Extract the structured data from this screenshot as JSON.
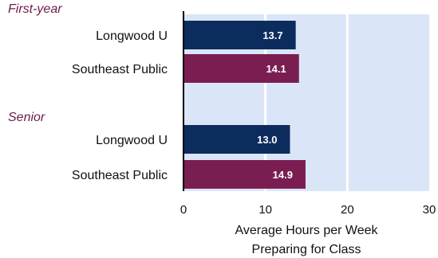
{
  "chart_data": {
    "type": "bar",
    "orientation": "horizontal",
    "groups": [
      {
        "label": "First-year",
        "rows": [
          {
            "category": "Longwood U",
            "value": 13.7,
            "value_label": "13.7",
            "color": "#0d2c5e"
          },
          {
            "category": "Southeast Public",
            "value": 14.1,
            "value_label": "14.1",
            "color": "#7a1e52"
          }
        ]
      },
      {
        "label": "Senior",
        "rows": [
          {
            "category": "Longwood U",
            "value": 13.0,
            "value_label": "13.0",
            "color": "#0d2c5e"
          },
          {
            "category": "Southeast Public",
            "value": 14.9,
            "value_label": "14.9",
            "color": "#7a1e52"
          }
        ]
      }
    ],
    "xlim": [
      0,
      30
    ],
    "xticks": [
      "0",
      "10",
      "20",
      "30"
    ],
    "xlabel_lines": [
      "Average Hours per Week",
      "Preparing for Class"
    ],
    "plot_background": "#dae6f7",
    "group_label_color": "#6b1c4c",
    "grid": true
  }
}
